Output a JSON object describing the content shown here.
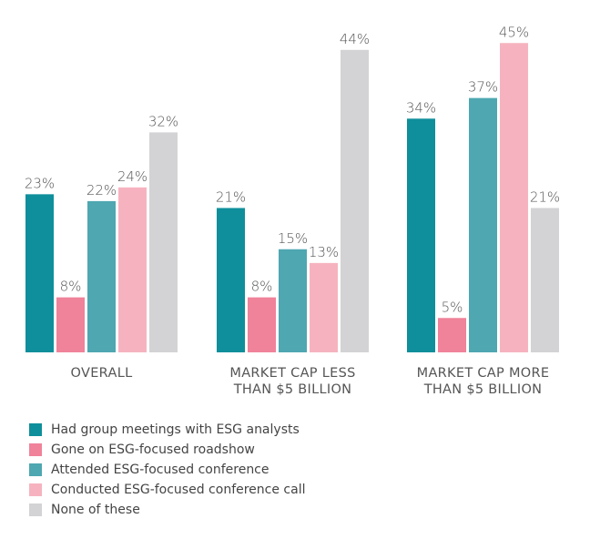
{
  "chart_data": {
    "type": "bar",
    "categories": [
      [
        "OVERALL"
      ],
      [
        "MARKET CAP LESS",
        "THAN $5 BILLION"
      ],
      [
        "MARKET CAP MORE",
        "THAN $5 BILLION"
      ]
    ],
    "series": [
      {
        "name": "Had group meetings with ESG analysts",
        "color": "#0e8f9b",
        "values": [
          23,
          21,
          34
        ]
      },
      {
        "name": "Gone on ESG-focused roadshow",
        "color": "#f0829a",
        "values": [
          8,
          8,
          5
        ]
      },
      {
        "name": "Attended ESG-focused conference",
        "color": "#4ea7b1",
        "values": [
          22,
          15,
          37
        ]
      },
      {
        "name": "Conducted ESG-focused conference call",
        "color": "#f6b3bf",
        "values": [
          24,
          13,
          45
        ]
      },
      {
        "name": "None of these",
        "color": "#d3d3d5",
        "values": [
          32,
          44,
          21
        ]
      }
    ],
    "value_suffix": "%",
    "ylim": [
      0,
      50
    ],
    "grid": false,
    "legend_position": "bottom-left"
  }
}
